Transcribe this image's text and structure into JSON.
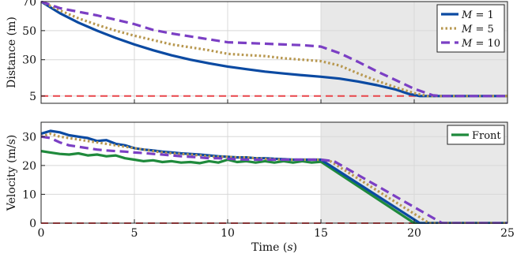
{
  "chart_data": [
    {
      "type": "line",
      "panel": "top",
      "ylabel": "Distance (m)",
      "xlim": [
        0,
        25
      ],
      "ylim": [
        0,
        70
      ],
      "ytick_values": [
        5,
        30,
        50,
        70
      ],
      "ytick_labels": [
        "5",
        "30",
        "50",
        "70"
      ],
      "xtick_labels_shown": false,
      "grid": true,
      "legend_position": "top-right",
      "shaded_region": {
        "x_start": 15,
        "x_end": 25,
        "color": "#e8e8e8"
      },
      "reference_line": {
        "y": 5,
        "color": "#e8454a",
        "style": "dashed"
      },
      "series": [
        {
          "name": "M = 1",
          "legend_var": "M",
          "legend_eq": " = 1",
          "color": "#0b4aa2",
          "style": "solid",
          "x": [
            0,
            1,
            2,
            3,
            4,
            5,
            6,
            7,
            8,
            9,
            10,
            11,
            12,
            13,
            14,
            15,
            16,
            17,
            18,
            19,
            19.7,
            20.3,
            21,
            22,
            23,
            24,
            25
          ],
          "y": [
            70,
            62,
            55.5,
            50,
            45,
            40.5,
            36.5,
            33,
            30,
            27.5,
            25.3,
            23.5,
            21.8,
            20.5,
            19.3,
            18.3,
            17,
            15,
            12.5,
            9.5,
            6.5,
            5,
            5,
            5,
            5,
            5,
            5
          ]
        },
        {
          "name": "M = 5",
          "legend_var": "M",
          "legend_eq": " = 5",
          "color": "#b89850",
          "style": "dotted",
          "x": [
            0,
            1,
            2,
            3,
            4,
            5,
            6,
            7,
            8,
            9,
            10,
            11,
            12,
            13,
            14,
            15,
            16,
            17,
            18,
            19,
            20,
            20.7,
            21.3,
            22,
            23,
            24,
            25
          ],
          "y": [
            70,
            64,
            58.5,
            54,
            50,
            46.5,
            43.5,
            40.5,
            38.5,
            36.5,
            34,
            33.2,
            32.5,
            31,
            30,
            29,
            26,
            20.5,
            15.5,
            11,
            7,
            5,
            5,
            5,
            5,
            5,
            5
          ]
        },
        {
          "name": "M = 10",
          "legend_var": "M",
          "legend_eq": " = 10",
          "color": "#7b3fc4",
          "style": "dashed",
          "x": [
            0,
            1,
            2,
            3,
            4,
            5,
            6,
            7,
            8,
            9,
            10,
            11,
            12,
            13,
            14,
            15,
            16,
            17,
            18,
            19,
            20,
            21,
            21.5,
            22,
            23,
            24,
            25
          ],
          "y": [
            70,
            65.5,
            63,
            60.5,
            57.5,
            54.5,
            50.5,
            48,
            46,
            44,
            42,
            41.5,
            41,
            40.5,
            40,
            39,
            34.5,
            28.5,
            22,
            16,
            10,
            5.5,
            5,
            5,
            5,
            5,
            5
          ]
        }
      ]
    },
    {
      "type": "line",
      "panel": "bottom",
      "xlabel": "Time (s)",
      "ylabel": "Velocity (m/s)",
      "xlim": [
        0,
        25
      ],
      "ylim": [
        0,
        35
      ],
      "xtick_values": [
        0,
        5,
        10,
        15,
        20,
        25
      ],
      "xtick_labels": [
        "0",
        "5",
        "10",
        "15",
        "20",
        "25"
      ],
      "ytick_values": [
        0,
        10,
        20,
        30
      ],
      "ytick_labels": [
        "0",
        "10",
        "20",
        "30"
      ],
      "grid": true,
      "legend_position": "top-right",
      "shaded_region": {
        "x_start": 15,
        "x_end": 25,
        "color": "#e8e8e8"
      },
      "reference_line": {
        "y": 0,
        "color": "#e8454a",
        "style": "dashed"
      },
      "series": [
        {
          "name": "Front",
          "color": "#1f8a3c",
          "style": "solid",
          "in_legend": true,
          "x": [
            0,
            0.5,
            1,
            1.5,
            2,
            2.5,
            3,
            3.5,
            4,
            4.5,
            5,
            5.5,
            6,
            6.5,
            7,
            7.5,
            8,
            8.5,
            9,
            9.5,
            10,
            10.5,
            11,
            11.5,
            12,
            12.5,
            13,
            13.5,
            14,
            14.5,
            15,
            20,
            25
          ],
          "y": [
            25,
            24.5,
            24,
            23.8,
            24.2,
            23.5,
            23.8,
            23.2,
            23.5,
            22.5,
            22,
            21.5,
            21.8,
            21.2,
            21.5,
            21,
            21.2,
            20.8,
            21.5,
            21,
            22,
            21.2,
            21.5,
            21,
            21.5,
            21,
            21.5,
            21,
            21.5,
            21,
            21.3,
            0,
            0
          ]
        },
        {
          "name": "",
          "color": "#0b4aa2",
          "style": "solid",
          "in_legend": false,
          "x": [
            0,
            0.5,
            1,
            1.5,
            2,
            2.5,
            3,
            3.5,
            4,
            4.5,
            5,
            5.5,
            6,
            6.5,
            7,
            7.5,
            8,
            8.5,
            9,
            9.5,
            10,
            10.5,
            11,
            11.5,
            12,
            12.5,
            13,
            13.5,
            14,
            14.5,
            15,
            20.3,
            25
          ],
          "y": [
            31,
            32,
            31.5,
            30.5,
            30,
            29.5,
            28.5,
            28.8,
            27.5,
            27,
            26,
            25.5,
            25.2,
            24.8,
            24.5,
            24.2,
            24,
            23.8,
            23.5,
            23.2,
            23,
            22.8,
            22.8,
            22.5,
            22.5,
            22.3,
            22.2,
            22,
            22,
            22,
            22,
            0,
            0
          ]
        },
        {
          "name": "",
          "color": "#b89850",
          "style": "dotted",
          "in_legend": false,
          "x": [
            0,
            0.5,
            1,
            1.5,
            2,
            2.5,
            3,
            3.5,
            4,
            4.5,
            5,
            5.5,
            6,
            6.5,
            7,
            7.5,
            8,
            8.5,
            9,
            9.5,
            10,
            10.5,
            11,
            11.5,
            12,
            12.5,
            13,
            13.5,
            14,
            14.5,
            15,
            15.5,
            20.8,
            25
          ],
          "y": [
            30,
            31,
            30,
            29.5,
            29,
            28.5,
            28,
            27.5,
            27,
            26.5,
            26,
            25.5,
            25,
            24.5,
            24.2,
            24,
            23.8,
            23.5,
            23.2,
            23,
            23,
            22.8,
            22.8,
            22.5,
            22.3,
            22.2,
            22,
            22,
            22,
            22,
            22,
            21.5,
            0,
            0
          ]
        },
        {
          "name": "",
          "color": "#7b3fc4",
          "style": "dashed",
          "in_legend": false,
          "x": [
            0,
            0.5,
            1,
            1.5,
            2,
            2.5,
            3,
            3.5,
            4,
            4.5,
            5,
            5.5,
            6,
            6.5,
            7,
            7.5,
            8,
            8.5,
            9,
            9.5,
            10,
            10.5,
            11,
            11.5,
            12,
            12.5,
            13,
            13.5,
            14,
            14.5,
            15,
            15.7,
            21.5,
            25
          ],
          "y": [
            30,
            29.5,
            28,
            27,
            26.5,
            26,
            25.5,
            25.2,
            25,
            24.8,
            24.5,
            24.3,
            24,
            23.8,
            23.5,
            23.2,
            23,
            22.8,
            22.5,
            22.5,
            22.3,
            22.2,
            22,
            22,
            22,
            22,
            22,
            22,
            22,
            22,
            22,
            21.5,
            0,
            0
          ]
        }
      ]
    }
  ]
}
